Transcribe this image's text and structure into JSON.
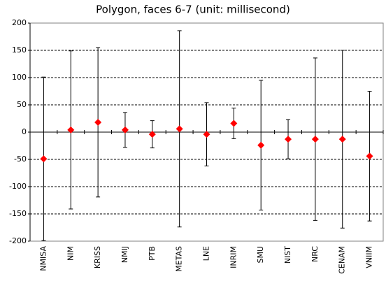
{
  "chart_data": {
    "type": "errorbar",
    "title": "Polygon, faces 6-7 (unit: millisecond)",
    "categories": [
      "NMISA",
      "NIM",
      "KRISS",
      "NMIJ",
      "PTB",
      "METAS",
      "LNE",
      "INRIM",
      "SMU",
      "NIST",
      "NRC",
      "CENAM",
      "VNIIM"
    ],
    "values": [
      -49,
      4,
      18,
      4,
      -4,
      6,
      -4,
      16,
      -24,
      -13,
      -13,
      -13,
      -44
    ],
    "errors": [
      150,
      145,
      137,
      32,
      25,
      180,
      58,
      28,
      119,
      36,
      149,
      163,
      119
    ],
    "color": "#ff0000",
    "ylim": [
      -200,
      200
    ],
    "yticks": [
      -200,
      -150,
      -100,
      -50,
      0,
      50,
      100,
      150,
      200
    ],
    "grid": true
  }
}
